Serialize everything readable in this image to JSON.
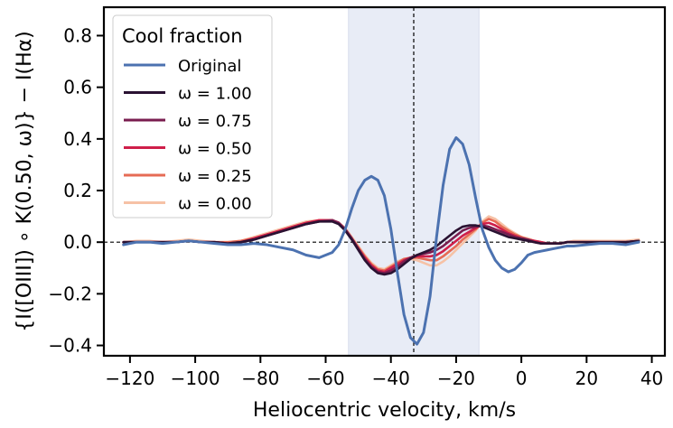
{
  "chart_data": {
    "type": "line",
    "title": "",
    "xlabel": "Heliocentric velocity, km/s",
    "ylabel": "{I([OIII]) ∘ K(0.50, ω)} − I(Hα)",
    "xlim": [
      -128,
      44
    ],
    "ylim": [
      -0.44,
      0.91
    ],
    "xticks": [
      -120,
      -100,
      -80,
      -60,
      -40,
      -20,
      0,
      20,
      40
    ],
    "xtick_labels": [
      "−120",
      "−100",
      "−80",
      "−60",
      "−40",
      "−20",
      "0",
      "20",
      "40"
    ],
    "yticks": [
      -0.4,
      -0.2,
      0.0,
      0.2,
      0.4,
      0.6,
      0.8
    ],
    "ytick_labels": [
      "−0.4",
      "−0.2",
      "0.0",
      "0.2",
      "0.4",
      "0.6",
      "0.8"
    ],
    "grid": false,
    "shaded_band": {
      "x0": -53,
      "x1": -13,
      "color": "#e8ecf6"
    },
    "vline": {
      "x": -33,
      "style": "dashed"
    },
    "hline": {
      "y": 0.0,
      "style": "dashed"
    },
    "legend": {
      "title": "Cool fraction",
      "placement": "upper-left",
      "entries": [
        "Original",
        "ω = 1.00",
        "ω = 0.75",
        "ω = 0.50",
        "ω = 0.25",
        "ω = 0.00"
      ]
    },
    "x": [
      -122,
      -118,
      -114,
      -110,
      -106,
      -102,
      -98,
      -94,
      -90,
      -86,
      -82,
      -78,
      -74,
      -70,
      -66,
      -62,
      -58,
      -56,
      -54,
      -52,
      -50,
      -48,
      -46,
      -44,
      -42,
      -40,
      -38,
      -36,
      -34,
      -32,
      -30,
      -28,
      -26,
      -24,
      -22,
      -20,
      -18,
      -16,
      -14,
      -12,
      -10,
      -8,
      -6,
      -4,
      -2,
      0,
      2,
      4,
      6,
      8,
      10,
      12,
      14,
      16,
      20,
      24,
      28,
      32,
      36
    ],
    "series": [
      {
        "name": "Original",
        "color": "#4c72b0",
        "values": [
          -0.01,
          0.0,
          0.0,
          -0.005,
          0.0,
          0.005,
          0.0,
          -0.005,
          -0.01,
          -0.01,
          -0.005,
          -0.01,
          -0.02,
          -0.03,
          -0.05,
          -0.06,
          -0.04,
          -0.01,
          0.05,
          0.13,
          0.2,
          0.24,
          0.255,
          0.24,
          0.18,
          0.05,
          -0.12,
          -0.28,
          -0.37,
          -0.395,
          -0.35,
          -0.21,
          0.02,
          0.22,
          0.36,
          0.405,
          0.38,
          0.3,
          0.17,
          0.05,
          -0.02,
          -0.07,
          -0.1,
          -0.115,
          -0.105,
          -0.08,
          -0.05,
          -0.04,
          -0.035,
          -0.03,
          -0.025,
          -0.02,
          -0.015,
          -0.015,
          -0.01,
          -0.005,
          -0.005,
          -0.01,
          0.0
        ]
      },
      {
        "name": "ω = 1.00",
        "color": "#2a1232",
        "values": [
          0.0,
          0.0,
          0.0,
          0.0,
          0.0,
          0.005,
          0.0,
          0.0,
          -0.005,
          0.0,
          0.01,
          0.025,
          0.04,
          0.055,
          0.07,
          0.08,
          0.08,
          0.07,
          0.045,
          0.01,
          -0.03,
          -0.07,
          -0.1,
          -0.12,
          -0.125,
          -0.12,
          -0.105,
          -0.085,
          -0.065,
          -0.05,
          -0.04,
          -0.03,
          -0.015,
          0.005,
          0.025,
          0.045,
          0.06,
          0.065,
          0.065,
          0.06,
          0.05,
          0.04,
          0.03,
          0.02,
          0.015,
          0.01,
          0.005,
          0.0,
          -0.005,
          -0.005,
          -0.005,
          -0.005,
          0.0,
          0.0,
          0.0,
          0.0,
          0.0,
          0.0,
          0.005
        ]
      },
      {
        "name": "ω = 0.75",
        "color": "#7a1d4f",
        "values": [
          0.0,
          0.0,
          0.0,
          0.0,
          0.0,
          0.005,
          0.0,
          0.0,
          -0.005,
          0.0,
          0.01,
          0.025,
          0.04,
          0.055,
          0.07,
          0.08,
          0.085,
          0.075,
          0.05,
          0.015,
          -0.025,
          -0.065,
          -0.095,
          -0.115,
          -0.12,
          -0.11,
          -0.095,
          -0.075,
          -0.06,
          -0.05,
          -0.045,
          -0.04,
          -0.03,
          -0.015,
          0.005,
          0.025,
          0.045,
          0.055,
          0.06,
          0.065,
          0.06,
          0.05,
          0.04,
          0.03,
          0.02,
          0.015,
          0.01,
          0.0,
          -0.005,
          -0.005,
          -0.005,
          -0.005,
          0.0,
          0.0,
          0.0,
          0.0,
          0.0,
          0.0,
          0.005
        ]
      },
      {
        "name": "ω = 0.50",
        "color": "#cf1f4a",
        "values": [
          0.0,
          0.0,
          0.0,
          0.0,
          0.0,
          0.005,
          0.0,
          0.0,
          -0.005,
          0.0,
          0.015,
          0.03,
          0.045,
          0.06,
          0.075,
          0.085,
          0.085,
          0.075,
          0.05,
          0.015,
          -0.025,
          -0.06,
          -0.09,
          -0.11,
          -0.115,
          -0.1,
          -0.085,
          -0.07,
          -0.06,
          -0.055,
          -0.055,
          -0.055,
          -0.05,
          -0.035,
          -0.015,
          0.005,
          0.025,
          0.04,
          0.055,
          0.07,
          0.075,
          0.065,
          0.05,
          0.035,
          0.025,
          0.015,
          0.01,
          0.005,
          0.0,
          -0.005,
          -0.005,
          -0.005,
          0.0,
          0.0,
          0.0,
          0.0,
          0.0,
          0.0,
          0.005
        ]
      },
      {
        "name": "ω = 0.25",
        "color": "#e66b55",
        "values": [
          0.0,
          0.0,
          0.0,
          0.0,
          0.0,
          0.005,
          0.0,
          0.0,
          0.0,
          0.005,
          0.015,
          0.03,
          0.045,
          0.06,
          0.075,
          0.085,
          0.085,
          0.075,
          0.05,
          0.015,
          -0.02,
          -0.055,
          -0.085,
          -0.105,
          -0.11,
          -0.095,
          -0.08,
          -0.065,
          -0.06,
          -0.06,
          -0.065,
          -0.07,
          -0.07,
          -0.055,
          -0.035,
          -0.015,
          0.01,
          0.03,
          0.05,
          0.075,
          0.09,
          0.08,
          0.06,
          0.045,
          0.03,
          0.02,
          0.01,
          0.005,
          0.0,
          -0.005,
          -0.005,
          -0.005,
          0.0,
          0.0,
          0.0,
          0.0,
          0.0,
          0.0,
          0.005
        ]
      },
      {
        "name": "ω = 0.00",
        "color": "#f6c2a6",
        "values": [
          0.0,
          0.005,
          0.005,
          0.0,
          0.005,
          0.01,
          0.005,
          0.0,
          0.0,
          0.005,
          0.02,
          0.035,
          0.05,
          0.065,
          0.08,
          0.085,
          0.085,
          0.075,
          0.055,
          0.02,
          -0.015,
          -0.05,
          -0.08,
          -0.1,
          -0.105,
          -0.09,
          -0.075,
          -0.065,
          -0.065,
          -0.07,
          -0.08,
          -0.09,
          -0.09,
          -0.075,
          -0.055,
          -0.03,
          -0.005,
          0.02,
          0.045,
          0.08,
          0.1,
          0.09,
          0.07,
          0.05,
          0.035,
          0.02,
          0.015,
          0.005,
          0.0,
          -0.005,
          -0.005,
          -0.005,
          0.0,
          0.005,
          0.005,
          0.005,
          0.005,
          0.005,
          0.01
        ]
      }
    ]
  }
}
